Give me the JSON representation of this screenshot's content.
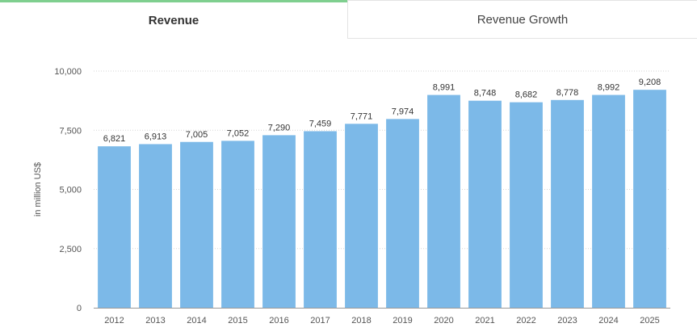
{
  "tabs": {
    "revenue": "Revenue",
    "growth": "Revenue Growth"
  },
  "colors": {
    "bar": "#7cb9e8",
    "grid": "#d6d6d6",
    "text": "#555555",
    "active_tab_accent": "#7fcf8f"
  },
  "chart_data": {
    "type": "bar",
    "categories": [
      "2012",
      "2013",
      "2014",
      "2015",
      "2016",
      "2017",
      "2018",
      "2019",
      "2020",
      "2021",
      "2022",
      "2023",
      "2024",
      "2025"
    ],
    "values": [
      6821,
      6913,
      7005,
      7052,
      7290,
      7459,
      7771,
      7974,
      8991,
      8748,
      8682,
      8778,
      8992,
      9208
    ],
    "value_labels": [
      "6,821",
      "6,913",
      "7,005",
      "7,052",
      "7,290",
      "7,459",
      "7,771",
      "7,974",
      "8,991",
      "8,748",
      "8,682",
      "8,778",
      "8,992",
      "9,208"
    ],
    "title": "",
    "xlabel": "",
    "ylabel": "in million US$",
    "ylim": [
      0,
      10000
    ],
    "yticks": [
      0,
      2500,
      5000,
      7500,
      10000
    ],
    "ytick_labels": [
      "0",
      "2,500",
      "5,000",
      "7,500",
      "10,000"
    ],
    "grid": true,
    "legend": false
  }
}
